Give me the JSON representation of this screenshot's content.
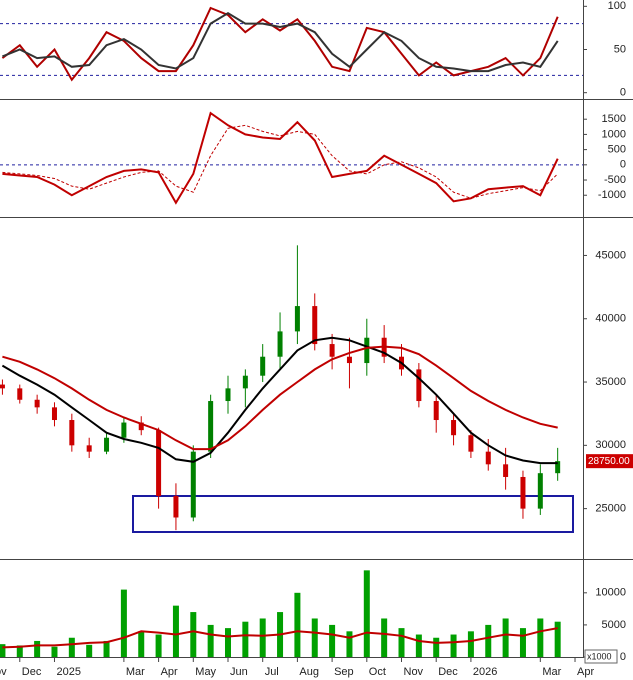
{
  "chart_data": [
    {
      "type": "line",
      "x": [
        0.5,
        1,
        1.5,
        2,
        2.5,
        3,
        3.5,
        4,
        4.5,
        5,
        5.5,
        6,
        6.5,
        7,
        7.5,
        8,
        8.5,
        9,
        9.5,
        10,
        10.5,
        11,
        11.5,
        12,
        12.5,
        13,
        13.5,
        14,
        14.5,
        15,
        15.5,
        16,
        16.5
      ],
      "xlim": [
        0.43,
        17.23
      ],
      "ylim": [
        -5,
        105
      ],
      "yticks": [
        0,
        50,
        100
      ],
      "hlines": [
        20,
        80
      ],
      "series": [
        {
          "color": "#b00000",
          "values": [
            40,
            55,
            30,
            50,
            15,
            40,
            70,
            60,
            40,
            25,
            25,
            55,
            98,
            90,
            70,
            85,
            72,
            85,
            60,
            30,
            25,
            75,
            70,
            45,
            20,
            35,
            20,
            25,
            30,
            40,
            20,
            40,
            88
          ]
        },
        {
          "color": "#333333",
          "values": [
            42,
            50,
            40,
            42,
            30,
            32,
            55,
            62,
            50,
            32,
            28,
            40,
            80,
            92,
            80,
            80,
            76,
            80,
            70,
            45,
            30,
            50,
            70,
            60,
            40,
            30,
            28,
            25,
            25,
            32,
            35,
            30,
            60
          ]
        }
      ]
    },
    {
      "type": "line",
      "x": [
        0.5,
        1,
        1.5,
        2,
        2.5,
        3,
        3.5,
        4,
        4.5,
        5,
        5.5,
        6,
        6.5,
        7,
        7.5,
        8,
        8.5,
        9,
        9.5,
        10,
        10.5,
        11,
        11.5,
        12,
        12.5,
        13,
        13.5,
        14,
        14.5,
        15,
        15.5,
        16,
        16.5
      ],
      "xlim": [
        0.43,
        17.23
      ],
      "ylim": [
        -1650,
        2000
      ],
      "yticks": [
        -1000,
        -500,
        0,
        500,
        1000,
        1500
      ],
      "hlines": [
        0
      ],
      "series": [
        {
          "color": "#c00000",
          "values": [
            -300,
            -350,
            -400,
            -650,
            -1000,
            -700,
            -400,
            -200,
            -150,
            -250,
            -1250,
            -300,
            1700,
            1300,
            1000,
            900,
            850,
            1400,
            800,
            -400,
            -300,
            -200,
            300,
            0,
            -300,
            -600,
            -1200,
            -1100,
            -800,
            -750,
            -700,
            -1000,
            200
          ]
        },
        {
          "color": "#c00000",
          "dash": true,
          "values": [
            -250,
            -300,
            -350,
            -450,
            -700,
            -800,
            -600,
            -400,
            -250,
            -200,
            -700,
            -900,
            300,
            1200,
            1300,
            1100,
            950,
            1100,
            1000,
            300,
            -200,
            -300,
            0,
            100,
            -100,
            -400,
            -900,
            -1100,
            -950,
            -850,
            -750,
            -850,
            -300
          ]
        }
      ]
    },
    {
      "type": "candlestick",
      "x": [
        0.5,
        1,
        1.5,
        2,
        2.5,
        3,
        3.5,
        4,
        4.5,
        5,
        5.5,
        6,
        6.5,
        7,
        7.5,
        8,
        8.5,
        9,
        9.5,
        10,
        10.5,
        11,
        11.5,
        12,
        12.5,
        13,
        13.5,
        14,
        14.5,
        15,
        15.5,
        16,
        16.5
      ],
      "xlim": [
        0.43,
        17.23
      ],
      "ylim": [
        21100,
        47800
      ],
      "yticks": [
        25000,
        30000,
        35000,
        40000,
        45000
      ],
      "open": [
        34800,
        34500,
        33600,
        33000,
        32000,
        30000,
        29500,
        30600,
        31800,
        31200,
        26000,
        24300,
        29500,
        33500,
        34500,
        35500,
        37000,
        39000,
        41000,
        38000,
        37000,
        36500,
        38500,
        37000,
        36000,
        33500,
        32000,
        30800,
        29500,
        28500,
        27500,
        25000,
        27800
      ],
      "high": [
        35200,
        34800,
        34000,
        33400,
        32500,
        30600,
        31000,
        32200,
        32300,
        31400,
        27000,
        30000,
        34000,
        35500,
        36000,
        38000,
        40500,
        45800,
        42000,
        38800,
        38500,
        40000,
        39500,
        38000,
        36500,
        34000,
        32500,
        31200,
        30500,
        29800,
        28000,
        28500,
        29800
      ],
      "low": [
        34000,
        33300,
        32500,
        31500,
        29500,
        29000,
        29300,
        30200,
        30800,
        25000,
        23300,
        24000,
        29000,
        32500,
        33000,
        35000,
        36000,
        38000,
        37500,
        36000,
        34500,
        35500,
        36500,
        35500,
        33000,
        31000,
        30000,
        29000,
        28000,
        26500,
        24200,
        24500,
        27200
      ],
      "close": [
        34500,
        33600,
        33000,
        32000,
        30000,
        29500,
        30600,
        31800,
        31200,
        26000,
        24300,
        29500,
        33500,
        34500,
        35500,
        37000,
        39000,
        41000,
        38000,
        37000,
        36500,
        38500,
        37000,
        36000,
        33500,
        32000,
        30800,
        29500,
        28500,
        27500,
        25000,
        27800,
        28750
      ],
      "up_color": "#008000",
      "down_color": "#cc0000",
      "series": [
        {
          "color": "#000000",
          "values": [
            36300,
            35500,
            34800,
            34000,
            33000,
            32000,
            31000,
            30500,
            30200,
            29800,
            28900,
            28700,
            29400,
            31000,
            32800,
            34500,
            36000,
            37500,
            38300,
            38500,
            38300,
            37800,
            37300,
            36500,
            35300,
            34000,
            32500,
            31000,
            30000,
            29200,
            28800,
            28600,
            28600
          ]
        },
        {
          "color": "#c00000",
          "values": [
            37000,
            36600,
            36000,
            35300,
            34500,
            33600,
            32800,
            32200,
            31700,
            31200,
            30400,
            29700,
            29700,
            30400,
            31500,
            32800,
            34000,
            35000,
            36000,
            36800,
            37300,
            37700,
            37800,
            37700,
            37200,
            36300,
            35300,
            34300,
            33500,
            32800,
            32200,
            31700,
            31400
          ]
        }
      ],
      "last_label": {
        "value": 28750,
        "label": "28750.00"
      }
    },
    {
      "type": "bar",
      "x": [
        0.5,
        1,
        1.5,
        2,
        2.5,
        3,
        3.5,
        4,
        4.5,
        5,
        5.5,
        6,
        6.5,
        7,
        7.5,
        8,
        8.5,
        9,
        9.5,
        10,
        10.5,
        11,
        11.5,
        12,
        12.5,
        13,
        13.5,
        14,
        14.5,
        15,
        15.5,
        16,
        16.5
      ],
      "xlim": [
        0.43,
        17.23
      ],
      "ylim": [
        0,
        14800
      ],
      "yticks": [
        0,
        5000,
        10000
      ],
      "values": [
        2000,
        1800,
        2500,
        1600,
        3000,
        1900,
        2500,
        10500,
        4000,
        3500,
        8000,
        7000,
        5000,
        4500,
        5500,
        6000,
        7000,
        10000,
        6000,
        5000,
        4000,
        13500,
        6000,
        4500,
        3500,
        3000,
        3500,
        4000,
        5000,
        6000,
        4500,
        6000,
        5500
      ],
      "color": "#00a000",
      "series": [
        {
          "color": "#c00000",
          "values": [
            1500,
            1600,
            1800,
            1800,
            2000,
            2200,
            2300,
            3000,
            4000,
            3800,
            3500,
            4000,
            3500,
            3200,
            3400,
            3300,
            3500,
            4000,
            3800,
            3500,
            3000,
            3800,
            3600,
            3300,
            2500,
            2200,
            2300,
            2500,
            3000,
            3500,
            3300,
            4000,
            4500
          ]
        }
      ],
      "axis_note": "x1000",
      "xticks": [
        {
          "value": 0,
          "label": "Nov"
        },
        {
          "value": 1,
          "label": "Dec"
        },
        {
          "value": 2,
          "label": "2025"
        },
        {
          "value": 4,
          "label": "Mar"
        },
        {
          "value": 5,
          "label": "Apr"
        },
        {
          "value": 6,
          "label": "May"
        },
        {
          "value": 7,
          "label": "Jun"
        },
        {
          "value": 8,
          "label": "Jul"
        },
        {
          "value": 9,
          "label": "Aug"
        },
        {
          "value": 10,
          "label": "Sep"
        },
        {
          "value": 11,
          "label": "Oct"
        },
        {
          "value": 12,
          "label": "Nov"
        },
        {
          "value": 13,
          "label": "Dec"
        },
        {
          "value": 14,
          "label": "2026"
        },
        {
          "value": 16,
          "label": "Mar"
        },
        {
          "value": 17,
          "label": "Apr"
        }
      ]
    }
  ]
}
